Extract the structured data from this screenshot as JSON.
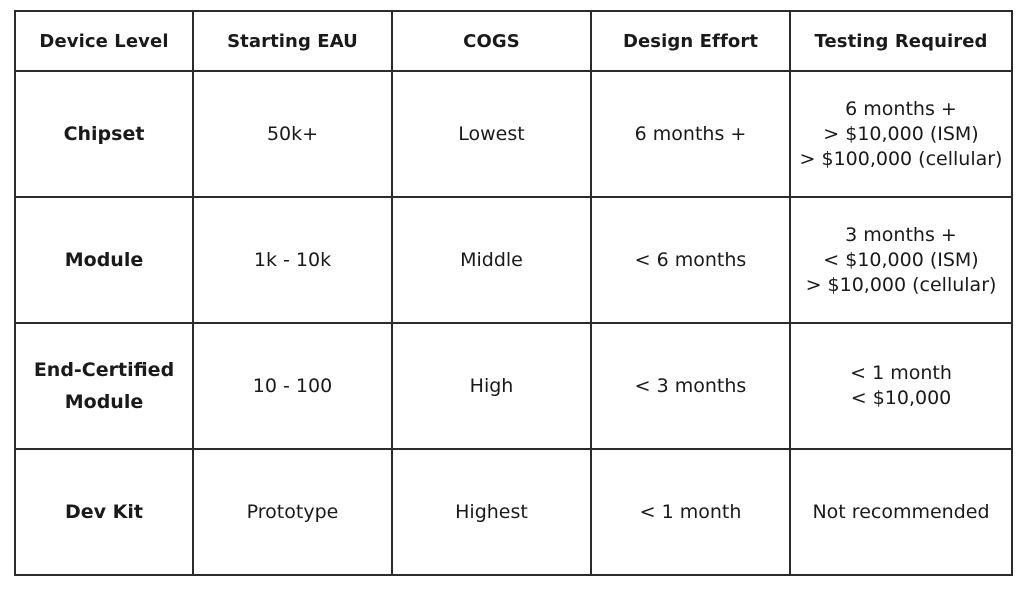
{
  "table": {
    "headers": [
      "Device Level",
      "Starting EAU",
      "COGS",
      "Design Effort",
      "Testing Required"
    ],
    "rows": [
      {
        "device_level": [
          "Chipset"
        ],
        "starting_eau": "50k+",
        "cogs": "Lowest",
        "design_effort": "6 months +",
        "testing_required": [
          "6 months +",
          "> $10,000 (ISM)",
          "> $100,000 (cellular)"
        ]
      },
      {
        "device_level": [
          "Module"
        ],
        "starting_eau": "1k - 10k",
        "cogs": "Middle",
        "design_effort": "< 6 months",
        "testing_required": [
          "3 months +",
          "< $10,000 (ISM)",
          "> $10,000 (cellular)"
        ]
      },
      {
        "device_level": [
          "End-Certified",
          "Module"
        ],
        "starting_eau": "10 - 100",
        "cogs": "High",
        "design_effort": "< 3 months",
        "testing_required": [
          "< 1 month",
          "< $10,000"
        ]
      },
      {
        "device_level": [
          "Dev Kit"
        ],
        "starting_eau": "Prototype",
        "cogs": "Highest",
        "design_effort": "< 1 month",
        "testing_required": [
          "Not recommended"
        ]
      }
    ]
  }
}
